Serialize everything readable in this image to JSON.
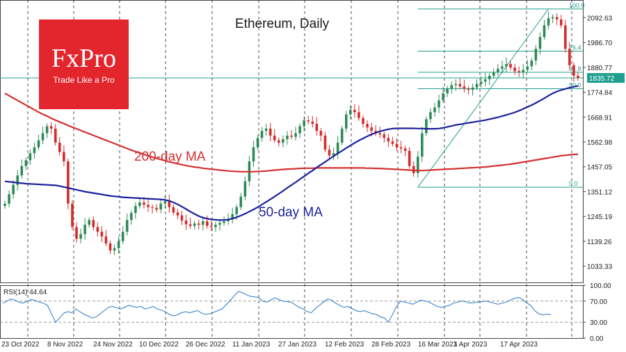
{
  "brand": {
    "name": "FxPro",
    "tagline": "Trade Like a Pro",
    "color": "#e3262e"
  },
  "chart_data": [
    {
      "type": "candlestick",
      "title": "Ethereum, Daily",
      "x_tick_labels": [
        "23 Oct 2022",
        "8 Nov 2022",
        "24 Nov 2022",
        "10 Dec 2022",
        "26 Dec 2022",
        "11 Jan 2023",
        "27 Jan 2023",
        "12 Feb 2023",
        "28 Feb 2023",
        "16 Mar 2023",
        "1 Apr 2023",
        "17 Apr 2023"
      ],
      "y_ticks": [
        2092.63,
        1986.7,
        1880.77,
        1774.84,
        1668.91,
        1562.98,
        1457.05,
        1351.12,
        1245.19,
        1139.26,
        1033.33
      ],
      "ylim": [
        964,
        2168
      ],
      "last_price": 1835.72,
      "close": [
        1300,
        1340,
        1380,
        1420,
        1460,
        1485,
        1515,
        1540,
        1570,
        1600,
        1630,
        1620,
        1560,
        1520,
        1480,
        1300,
        1200,
        1150,
        1170,
        1210,
        1230,
        1200,
        1180,
        1160,
        1130,
        1100,
        1110,
        1140,
        1180,
        1230,
        1260,
        1290,
        1305,
        1295,
        1285,
        1282,
        1275,
        1300,
        1310,
        1285,
        1262,
        1250,
        1228,
        1212,
        1205,
        1215,
        1210,
        1225,
        1205,
        1200,
        1210,
        1218,
        1225,
        1235,
        1255,
        1285,
        1330,
        1395,
        1480,
        1540,
        1580,
        1610,
        1620,
        1590,
        1570,
        1560,
        1575,
        1590,
        1585,
        1600,
        1630,
        1655,
        1650,
        1640,
        1610,
        1590,
        1530,
        1505,
        1515,
        1560,
        1620,
        1680,
        1700,
        1690,
        1665,
        1640,
        1625,
        1610,
        1600,
        1595,
        1580,
        1565,
        1555,
        1540,
        1535,
        1525,
        1460,
        1430,
        1500,
        1600,
        1660,
        1690,
        1710,
        1740,
        1770,
        1790,
        1805,
        1810,
        1800,
        1790,
        1785,
        1795,
        1810,
        1820,
        1830,
        1845,
        1860,
        1875,
        1885,
        1895,
        1880,
        1865,
        1860,
        1870,
        1885,
        1910,
        1960,
        2010,
        2060,
        2090,
        2095,
        2085,
        2060,
        1960,
        1890,
        1845,
        1835.72
      ],
      "ma_series": [
        {
          "name": "200-day MA",
          "color": "#d42f2f",
          "label_position": "middle-left",
          "values": [
            1770,
            1760,
            1750,
            1740,
            1730,
            1720,
            1710,
            1700,
            1690,
            1681,
            1673,
            1664,
            1656,
            1648,
            1641,
            1633,
            1626,
            1619,
            1612,
            1605,
            1598,
            1591,
            1584,
            1577,
            1570,
            1563,
            1556,
            1549,
            1542,
            1535,
            1528,
            1522,
            1516,
            1510,
            1504,
            1498,
            1493,
            1488,
            1483,
            1478,
            1474,
            1470,
            1466,
            1462,
            1459,
            1456,
            1454,
            1451,
            1449,
            1447,
            1445,
            1443,
            1441,
            1439,
            1438,
            1437,
            1436,
            1436,
            1436,
            1436,
            1437,
            1438,
            1439,
            1441,
            1443,
            1444,
            1446,
            1447,
            1448,
            1449,
            1450,
            1451,
            1451,
            1451,
            1452,
            1452,
            1452,
            1452,
            1452,
            1452,
            1452,
            1452,
            1452,
            1452,
            1452,
            1452,
            1451,
            1451,
            1450,
            1450,
            1449,
            1448,
            1447,
            1446,
            1445,
            1444,
            1443,
            1442,
            1441,
            1441,
            1442,
            1443,
            1444,
            1445,
            1446,
            1447,
            1448,
            1449,
            1450,
            1451,
            1452,
            1453,
            1454,
            1455,
            1456,
            1458,
            1460,
            1462,
            1464,
            1466,
            1468,
            1471,
            1474,
            1477,
            1480,
            1483,
            1486,
            1489,
            1492,
            1495,
            1498,
            1501,
            1504,
            1506,
            1508,
            1510,
            1510
          ]
        },
        {
          "name": "50-day MA",
          "color": "#1a1f9c",
          "label_position": "bottom-center",
          "values": [
            1395,
            1393,
            1391,
            1389,
            1387,
            1385,
            1384,
            1383,
            1382,
            1381,
            1380,
            1379,
            1378,
            1375,
            1371,
            1367,
            1363,
            1359,
            1355,
            1351,
            1348,
            1345,
            1342,
            1339,
            1336,
            1333,
            1331,
            1329,
            1327,
            1326,
            1325,
            1324,
            1323,
            1322,
            1321,
            1320,
            1319,
            1318,
            1316,
            1312,
            1305,
            1297,
            1287,
            1277,
            1266,
            1256,
            1247,
            1240,
            1236,
            1233,
            1231,
            1230,
            1230,
            1232,
            1236,
            1242,
            1249,
            1257,
            1266,
            1275,
            1285,
            1296,
            1307,
            1318,
            1330,
            1342,
            1354,
            1367,
            1379,
            1391,
            1404,
            1416,
            1429,
            1441,
            1454,
            1466,
            1478,
            1490,
            1502,
            1514,
            1525,
            1537,
            1548,
            1559,
            1569,
            1578,
            1587,
            1595,
            1602,
            1608,
            1613,
            1617,
            1620,
            1621,
            1621,
            1621,
            1621,
            1621,
            1620,
            1620,
            1619,
            1619,
            1619,
            1620,
            1623,
            1627,
            1631,
            1635,
            1638,
            1641,
            1644,
            1647,
            1650,
            1653,
            1656,
            1660,
            1664,
            1668,
            1673,
            1678,
            1683,
            1689,
            1696,
            1704,
            1712,
            1720,
            1729,
            1739,
            1749,
            1760,
            1770,
            1778,
            1784,
            1789,
            1794,
            1798,
            1802
          ]
        }
      ],
      "fibonacci": [
        {
          "label": "100.0",
          "price": 2130
        },
        {
          "label": "76.4",
          "price": 1950
        },
        {
          "label": "61.8",
          "price": 1860
        },
        {
          "label": "50.0",
          "price": 1790
        },
        {
          "label": "0.0",
          "price": 1370
        }
      ],
      "horizontal_line": 1835.72,
      "line_color": "#1e9f8e"
    },
    {
      "type": "line",
      "title": "RSI(14) 44.64",
      "y_ticks": [
        100.0,
        70.0,
        30.0,
        0.0
      ],
      "y_tick_labels": [
        "100.00",
        "70.00",
        "30.00",
        "0.00"
      ],
      "ylim": [
        0,
        100
      ],
      "color": "#2477c9",
      "values": [
        66,
        70,
        74,
        72,
        68,
        66,
        70,
        73,
        71,
        68,
        66,
        62,
        46,
        30,
        38,
        47,
        50,
        48,
        55,
        50,
        45,
        42,
        38,
        40,
        46,
        52,
        58,
        60,
        57,
        55,
        58,
        62,
        60,
        58,
        60,
        55,
        57,
        60,
        55,
        53,
        50,
        45,
        42,
        44,
        48,
        50,
        48,
        50,
        52,
        47,
        45,
        46,
        49,
        52,
        55,
        63,
        71,
        80,
        88,
        86,
        82,
        79,
        78,
        77,
        70,
        68,
        72,
        76,
        73,
        70,
        69,
        68,
        63,
        58,
        55,
        50,
        48,
        56,
        62,
        68,
        74,
        72,
        66,
        62,
        58,
        60,
        56,
        52,
        50,
        52,
        49,
        46,
        45,
        40,
        38,
        30,
        45,
        60,
        70,
        68,
        66,
        64,
        68,
        72,
        70,
        68,
        64,
        60,
        58,
        60,
        62,
        66,
        68,
        70,
        69,
        66,
        67,
        68,
        69,
        70,
        68,
        66,
        64,
        66,
        68,
        72,
        75,
        77,
        73,
        67,
        62,
        52,
        46,
        44,
        45,
        44.64
      ]
    }
  ]
}
